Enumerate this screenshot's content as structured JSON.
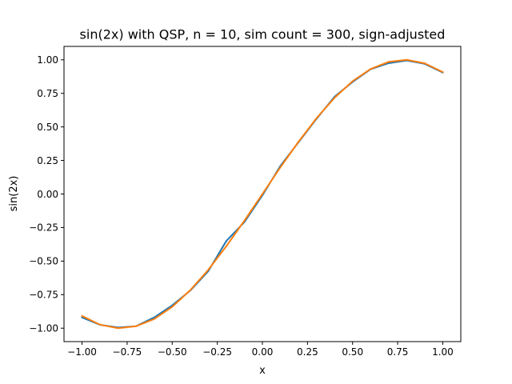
{
  "chart_data": {
    "type": "line",
    "title": "sin(2x) with QSP, n = 10, sim count = 300, sign-adjusted",
    "xlabel": "x",
    "ylabel": "sin(2x)",
    "xlim": [
      -1.1,
      1.1
    ],
    "ylim": [
      -1.1,
      1.1
    ],
    "xticks": [
      -1.0,
      -0.75,
      -0.5,
      -0.25,
      0.0,
      0.25,
      0.5,
      0.75,
      1.0
    ],
    "xtick_labels": [
      "−1.00",
      "−0.75",
      "−0.50",
      "−0.25",
      "0.00",
      "0.25",
      "0.50",
      "0.75",
      "1.00"
    ],
    "yticks": [
      -1.0,
      -0.75,
      -0.5,
      -0.25,
      0.0,
      0.25,
      0.5,
      0.75,
      1.0
    ],
    "ytick_labels": [
      "−1.00",
      "−0.75",
      "−0.50",
      "−0.25",
      "0.00",
      "0.25",
      "0.50",
      "0.75",
      "1.00"
    ],
    "grid": false,
    "x": [
      -1.0,
      -0.9,
      -0.8,
      -0.7,
      -0.6,
      -0.5,
      -0.4,
      -0.3,
      -0.2,
      -0.1,
      0.0,
      0.1,
      0.2,
      0.3,
      0.4,
      0.5,
      0.6,
      0.7,
      0.8,
      0.9,
      1.0
    ],
    "series": [
      {
        "color": "#1f77b4",
        "values": [
          -0.92,
          -0.975,
          -0.995,
          -0.985,
          -0.92,
          -0.83,
          -0.72,
          -0.575,
          -0.35,
          -0.21,
          -0.01,
          0.21,
          0.385,
          0.56,
          0.725,
          0.835,
          0.93,
          0.975,
          0.995,
          0.97,
          0.905
        ]
      },
      {
        "color": "#ff7f0e",
        "values": [
          -0.909,
          -0.974,
          -1.0,
          -0.985,
          -0.932,
          -0.841,
          -0.717,
          -0.565,
          -0.389,
          -0.199,
          0.0,
          0.199,
          0.389,
          0.565,
          0.717,
          0.841,
          0.932,
          0.985,
          1.0,
          0.974,
          0.909
        ]
      }
    ]
  }
}
